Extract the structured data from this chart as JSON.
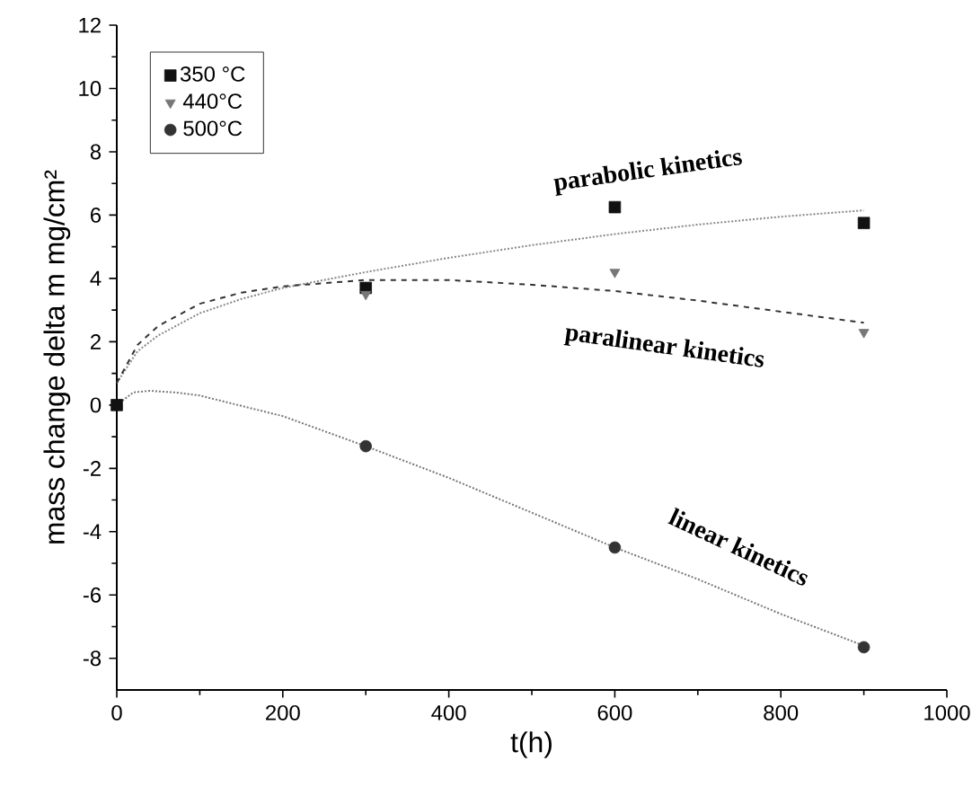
{
  "chart_data": {
    "type": "scatter",
    "xlabel": "t(h)",
    "ylabel": "mass change delta m mg/cm²",
    "xlim": [
      0,
      1000
    ],
    "ylim": [
      -9,
      12
    ],
    "xticks": [
      0,
      200,
      400,
      600,
      800,
      1000
    ],
    "yticks": [
      -8,
      -6,
      -4,
      -2,
      0,
      2,
      4,
      6,
      8,
      10,
      12
    ],
    "legend": "top left",
    "grid": false,
    "series": [
      {
        "name": "350 °C",
        "color": "#111111",
        "marker": "square",
        "x": [
          0,
          300,
          600,
          900
        ],
        "values": [
          0,
          3.7,
          6.25,
          5.75
        ]
      },
      {
        "name": "440°C",
        "color": "#777777",
        "marker": "triangle",
        "x": [
          300,
          600,
          900
        ],
        "values": [
          3.5,
          4.2,
          2.3
        ]
      },
      {
        "name": "500°C",
        "color": "#333333",
        "marker": "circle",
        "x": [
          300,
          600,
          900
        ],
        "values": [
          -1.3,
          -4.5,
          -7.65
        ]
      },
      {
        "type": "line",
        "color": "#888888",
        "line_style": "dotted",
        "marker": "none",
        "x": [
          0,
          25,
          50,
          100,
          150,
          200,
          300,
          400,
          500,
          600,
          700,
          800,
          900
        ],
        "values": [
          0.7,
          1.7,
          2.2,
          2.9,
          3.35,
          3.7,
          4.2,
          4.65,
          5.05,
          5.4,
          5.7,
          5.95,
          6.15
        ]
      },
      {
        "type": "line",
        "color": "#333333",
        "line_style": "dashed",
        "marker": "none",
        "x": [
          0,
          25,
          50,
          100,
          150,
          200,
          300,
          400,
          500,
          600,
          700,
          800,
          900
        ],
        "values": [
          0.7,
          1.9,
          2.5,
          3.2,
          3.55,
          3.75,
          3.95,
          3.95,
          3.8,
          3.6,
          3.3,
          2.95,
          2.6
        ]
      },
      {
        "type": "line",
        "color": "#777777",
        "line_style": "dotted",
        "marker": "none",
        "x": [
          0,
          20,
          40,
          70,
          100,
          200,
          300,
          400,
          500,
          600,
          700,
          800,
          900
        ],
        "values": [
          0,
          0.4,
          0.45,
          0.4,
          0.3,
          -0.35,
          -1.3,
          -2.3,
          -3.4,
          -4.5,
          -5.5,
          -6.6,
          -7.6
        ]
      }
    ],
    "annotations": [
      "parabolic kinetics",
      "paralinear kinetics",
      "linear kinetics"
    ]
  }
}
